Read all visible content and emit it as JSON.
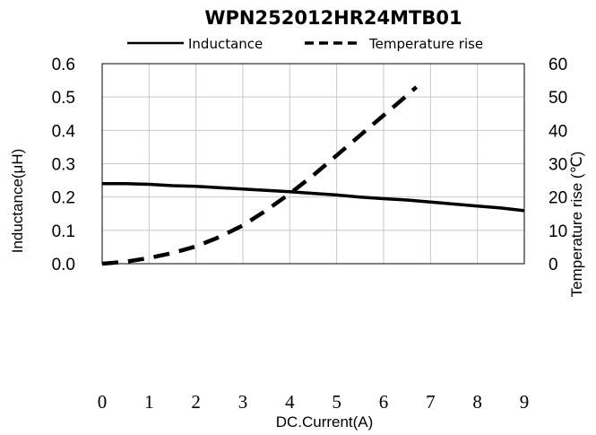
{
  "chart_data": {
    "type": "line",
    "title": "WPN252012HR24MTB01",
    "xlabel": "DC.Current(A)",
    "ylabel": "Inductance(μH)",
    "y2label": "Temperature rise (℃)",
    "xlim": [
      0,
      9
    ],
    "ylim": [
      0,
      0.6
    ],
    "y2lim": [
      0,
      60
    ],
    "x_ticks": [
      "0",
      "1",
      "2",
      "3",
      "4",
      "5",
      "6",
      "7",
      "8",
      "9"
    ],
    "y_ticks": [
      "0.0",
      "0.1",
      "0.2",
      "0.3",
      "0.4",
      "0.5",
      "0.6"
    ],
    "y2_ticks": [
      "0",
      "10",
      "20",
      "30",
      "40",
      "50",
      "60"
    ],
    "grid": true,
    "legend_position": "top-center",
    "series": [
      {
        "name": "Inductance",
        "axis": "left",
        "style": "solid",
        "color": "#000000",
        "x": [
          0,
          0.5,
          1,
          1.5,
          2,
          2.5,
          3,
          3.5,
          4,
          4.5,
          5,
          5.5,
          6,
          6.5,
          7,
          7.5,
          8,
          8.5,
          9
        ],
        "y": [
          0.24,
          0.24,
          0.238,
          0.234,
          0.232,
          0.228,
          0.224,
          0.22,
          0.216,
          0.211,
          0.206,
          0.2,
          0.195,
          0.191,
          0.185,
          0.179,
          0.173,
          0.167,
          0.159
        ]
      },
      {
        "name": "Temperature rise",
        "axis": "right",
        "style": "dashed",
        "color": "#000000",
        "x": [
          0,
          0.5,
          1,
          1.5,
          2,
          2.5,
          3,
          3.5,
          4,
          4.5,
          5,
          5.5,
          6,
          6.5,
          6.7
        ],
        "y": [
          0,
          0.6,
          1.7,
          3.2,
          5.2,
          8.0,
          11.5,
          16.0,
          21.0,
          26.5,
          32.5,
          38.5,
          44.5,
          50.5,
          53.0
        ]
      }
    ]
  }
}
